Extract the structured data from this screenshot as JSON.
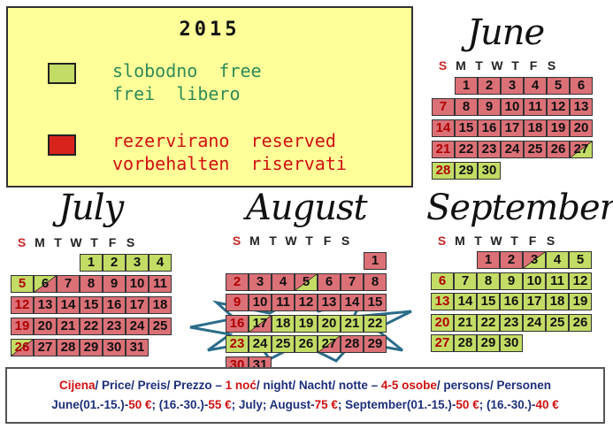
{
  "legend": {
    "year": "2015",
    "free_line1": "slobodno  free",
    "free_line2": "frei  libero",
    "reserved_line1": "rezervirano  reserved",
    "reserved_line2": "vorbehalten  riservati",
    "colors": {
      "free": "#c3dc65",
      "reserved": "#dc7077",
      "free_text": "#2e8b57",
      "reserved_text": "#d01010"
    }
  },
  "weekdays": [
    "S",
    "M",
    "T",
    "W",
    "T",
    "F",
    "S"
  ],
  "months": [
    {
      "name": "June",
      "days": [
        {
          "d": "1",
          "s": "res"
        },
        {
          "d": "2",
          "s": "res"
        },
        {
          "d": "3",
          "s": "res"
        },
        {
          "d": "4",
          "s": "res"
        },
        {
          "d": "5",
          "s": "res"
        },
        {
          "d": "6",
          "s": "res"
        },
        {
          "d": "7",
          "s": "res"
        },
        {
          "d": "8",
          "s": "res"
        },
        {
          "d": "9",
          "s": "res"
        },
        {
          "d": "10",
          "s": "res"
        },
        {
          "d": "11",
          "s": "res"
        },
        {
          "d": "12",
          "s": "res"
        },
        {
          "d": "13",
          "s": "res"
        },
        {
          "d": "14",
          "s": "res"
        },
        {
          "d": "15",
          "s": "res"
        },
        {
          "d": "16",
          "s": "res"
        },
        {
          "d": "17",
          "s": "res"
        },
        {
          "d": "18",
          "s": "res"
        },
        {
          "d": "19",
          "s": "res"
        },
        {
          "d": "20",
          "s": "res"
        },
        {
          "d": "21",
          "s": "res"
        },
        {
          "d": "22",
          "s": "res"
        },
        {
          "d": "23",
          "s": "res"
        },
        {
          "d": "24",
          "s": "res"
        },
        {
          "d": "25",
          "s": "res"
        },
        {
          "d": "26",
          "s": "res"
        },
        {
          "d": "27",
          "s": "splitr"
        },
        {
          "d": "28",
          "s": "free"
        },
        {
          "d": "29",
          "s": "free"
        },
        {
          "d": "30",
          "s": "free"
        }
      ]
    },
    {
      "name": "July",
      "days": [
        {
          "d": "1",
          "s": "free"
        },
        {
          "d": "2",
          "s": "free"
        },
        {
          "d": "3",
          "s": "free"
        },
        {
          "d": "4",
          "s": "free"
        },
        {
          "d": "5",
          "s": "free"
        },
        {
          "d": "6",
          "s": "split"
        },
        {
          "d": "7",
          "s": "res"
        },
        {
          "d": "8",
          "s": "res"
        },
        {
          "d": "9",
          "s": "res"
        },
        {
          "d": "10",
          "s": "res"
        },
        {
          "d": "11",
          "s": "res"
        },
        {
          "d": "12",
          "s": "res"
        },
        {
          "d": "13",
          "s": "res"
        },
        {
          "d": "14",
          "s": "res"
        },
        {
          "d": "15",
          "s": "res"
        },
        {
          "d": "16",
          "s": "res"
        },
        {
          "d": "17",
          "s": "res"
        },
        {
          "d": "18",
          "s": "res"
        },
        {
          "d": "19",
          "s": "res"
        },
        {
          "d": "20",
          "s": "res"
        },
        {
          "d": "21",
          "s": "res"
        },
        {
          "d": "22",
          "s": "res"
        },
        {
          "d": "23",
          "s": "res"
        },
        {
          "d": "24",
          "s": "res"
        },
        {
          "d": "25",
          "s": "res"
        },
        {
          "d": "26",
          "s": "split"
        },
        {
          "d": "27",
          "s": "res"
        },
        {
          "d": "28",
          "s": "res"
        },
        {
          "d": "29",
          "s": "res"
        },
        {
          "d": "30",
          "s": "res"
        },
        {
          "d": "31",
          "s": "res"
        }
      ]
    },
    {
      "name": "August",
      "days": [
        {
          "d": "1",
          "s": "res"
        },
        {
          "d": "2",
          "s": "res"
        },
        {
          "d": "3",
          "s": "res"
        },
        {
          "d": "4",
          "s": "res"
        },
        {
          "d": "5",
          "s": "splitr"
        },
        {
          "d": "6",
          "s": "res"
        },
        {
          "d": "7",
          "s": "res"
        },
        {
          "d": "8",
          "s": "res"
        },
        {
          "d": "9",
          "s": "res"
        },
        {
          "d": "10",
          "s": "res"
        },
        {
          "d": "11",
          "s": "res"
        },
        {
          "d": "12",
          "s": "res"
        },
        {
          "d": "13",
          "s": "res"
        },
        {
          "d": "14",
          "s": "res"
        },
        {
          "d": "15",
          "s": "res"
        },
        {
          "d": "16",
          "s": "res"
        },
        {
          "d": "17",
          "s": "split"
        },
        {
          "d": "18",
          "s": "free"
        },
        {
          "d": "19",
          "s": "free"
        },
        {
          "d": "20",
          "s": "free"
        },
        {
          "d": "21",
          "s": "free"
        },
        {
          "d": "22",
          "s": "free"
        },
        {
          "d": "23",
          "s": "free"
        },
        {
          "d": "24",
          "s": "free"
        },
        {
          "d": "25",
          "s": "free"
        },
        {
          "d": "26",
          "s": "free"
        },
        {
          "d": "27",
          "s": "split"
        },
        {
          "d": "28",
          "s": "res"
        },
        {
          "d": "29",
          "s": "res"
        },
        {
          "d": "30",
          "s": "res"
        },
        {
          "d": "31",
          "s": "res"
        }
      ]
    },
    {
      "name": "September",
      "days": [
        {
          "d": "1",
          "s": "res"
        },
        {
          "d": "2",
          "s": "res"
        },
        {
          "d": "3",
          "s": "splitr"
        },
        {
          "d": "4",
          "s": "free"
        },
        {
          "d": "5",
          "s": "free"
        },
        {
          "d": "6",
          "s": "free"
        },
        {
          "d": "7",
          "s": "free"
        },
        {
          "d": "8",
          "s": "free"
        },
        {
          "d": "9",
          "s": "free"
        },
        {
          "d": "10",
          "s": "free"
        },
        {
          "d": "11",
          "s": "free"
        },
        {
          "d": "12",
          "s": "free"
        },
        {
          "d": "13",
          "s": "free"
        },
        {
          "d": "14",
          "s": "free"
        },
        {
          "d": "15",
          "s": "free"
        },
        {
          "d": "16",
          "s": "free"
        },
        {
          "d": "17",
          "s": "free"
        },
        {
          "d": "18",
          "s": "free"
        },
        {
          "d": "19",
          "s": "free"
        },
        {
          "d": "20",
          "s": "free"
        },
        {
          "d": "21",
          "s": "free"
        },
        {
          "d": "22",
          "s": "free"
        },
        {
          "d": "23",
          "s": "free"
        },
        {
          "d": "24",
          "s": "free"
        },
        {
          "d": "25",
          "s": "free"
        },
        {
          "d": "26",
          "s": "free"
        },
        {
          "d": "27",
          "s": "free"
        },
        {
          "d": "28",
          "s": "free"
        },
        {
          "d": "29",
          "s": "free"
        },
        {
          "d": "30",
          "s": "free"
        }
      ]
    }
  ],
  "prices": {
    "line1": [
      {
        "t": "Cijena",
        "c": "red"
      },
      {
        "t": "/ Price/ Preis/ Prezzo – ",
        "c": "blue"
      },
      {
        "t": "1 noć",
        "c": "red"
      },
      {
        "t": "/ night/ Nacht/ notte – ",
        "c": "blue"
      },
      {
        "t": "4-5 osobe",
        "c": "red"
      },
      {
        "t": "/ persons/ Personen",
        "c": "blue"
      }
    ],
    "line2": [
      {
        "t": "June(01.-15.)-",
        "c": "blue"
      },
      {
        "t": "50 €",
        "c": "red"
      },
      {
        "t": "; (16.-30.)-",
        "c": "blue"
      },
      {
        "t": "55 €",
        "c": "red"
      },
      {
        "t": "; July; August-",
        "c": "blue"
      },
      {
        "t": "75 €",
        "c": "red"
      },
      {
        "t": "; September(01.-15.)-",
        "c": "blue"
      },
      {
        "t": "50 €",
        "c": "red"
      },
      {
        "t": "; (16.-30.)-",
        "c": "blue"
      },
      {
        "t": "40 €",
        "c": "red"
      }
    ]
  }
}
